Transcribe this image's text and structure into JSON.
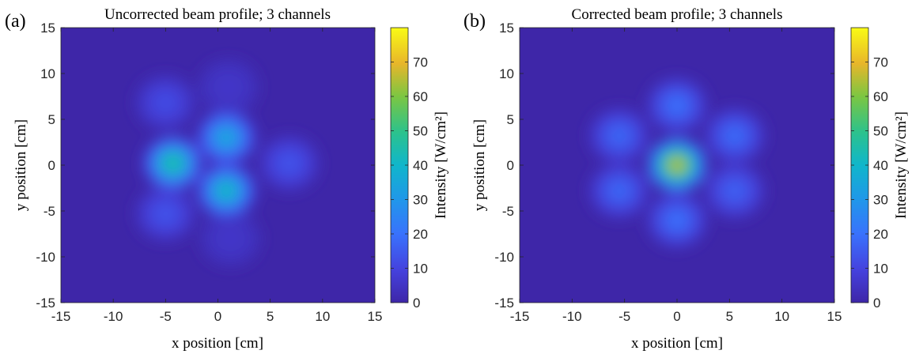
{
  "panels": [
    {
      "label": "(a)",
      "title": "Uncorrected beam profile; 3 channels"
    },
    {
      "label": "(b)",
      "title": "Corrected beam profile; 3 channels"
    }
  ],
  "chart_data": [
    {
      "type": "heatmap",
      "title": "Uncorrected beam profile; 3 channels",
      "xlabel": "x position [cm]",
      "ylabel": "y position [cm]",
      "xlim": [
        -15,
        15
      ],
      "ylim": [
        -15,
        15
      ],
      "xticks": [
        -15,
        -10,
        -5,
        0,
        5,
        10,
        15
      ],
      "yticks": [
        -15,
        -10,
        -5,
        0,
        5,
        10,
        15
      ],
      "colorbar": {
        "label": "Intensity [W/cm²]",
        "range": [
          0,
          80
        ],
        "ticks": [
          0,
          10,
          20,
          30,
          40,
          50,
          60,
          70
        ],
        "colormap": "parula"
      },
      "peaks": [
        {
          "x": -4.3,
          "y": 0.2,
          "value": 47
        },
        {
          "x": 0.8,
          "y": -2.8,
          "value": 42
        },
        {
          "x": 0.8,
          "y": 3.0,
          "value": 36
        },
        {
          "x": -5.0,
          "y": 6.8,
          "value": 12
        },
        {
          "x": -5.0,
          "y": -5.3,
          "value": 14
        },
        {
          "x": 6.8,
          "y": 0.2,
          "value": 14
        },
        {
          "x": 1.0,
          "y": 8.5,
          "value": 6
        },
        {
          "x": 1.2,
          "y": -8.0,
          "value": 6
        }
      ],
      "background_value": 3
    },
    {
      "type": "heatmap",
      "title": "Corrected beam profile; 3 channels",
      "xlabel": "x position [cm]",
      "ylabel": "y position [cm]",
      "xlim": [
        -15,
        15
      ],
      "ylim": [
        -15,
        15
      ],
      "xticks": [
        -15,
        -10,
        -5,
        0,
        5,
        10,
        15
      ],
      "yticks": [
        -15,
        -10,
        -5,
        0,
        5,
        10,
        15
      ],
      "colorbar": {
        "label": "Intensity [W/cm²]",
        "range": [
          0,
          80
        ],
        "ticks": [
          0,
          10,
          20,
          30,
          40,
          50,
          60,
          70
        ],
        "colormap": "parula"
      },
      "peaks": [
        {
          "x": 0.0,
          "y": 0.0,
          "value": 66
        },
        {
          "x": 0.0,
          "y": 6.5,
          "value": 20
        },
        {
          "x": 0.0,
          "y": -6.0,
          "value": 20
        },
        {
          "x": 5.5,
          "y": 3.2,
          "value": 19
        },
        {
          "x": 5.5,
          "y": -2.8,
          "value": 17
        },
        {
          "x": -5.5,
          "y": 3.2,
          "value": 18
        },
        {
          "x": -5.5,
          "y": -2.8,
          "value": 18
        }
      ],
      "background_value": 3
    }
  ]
}
